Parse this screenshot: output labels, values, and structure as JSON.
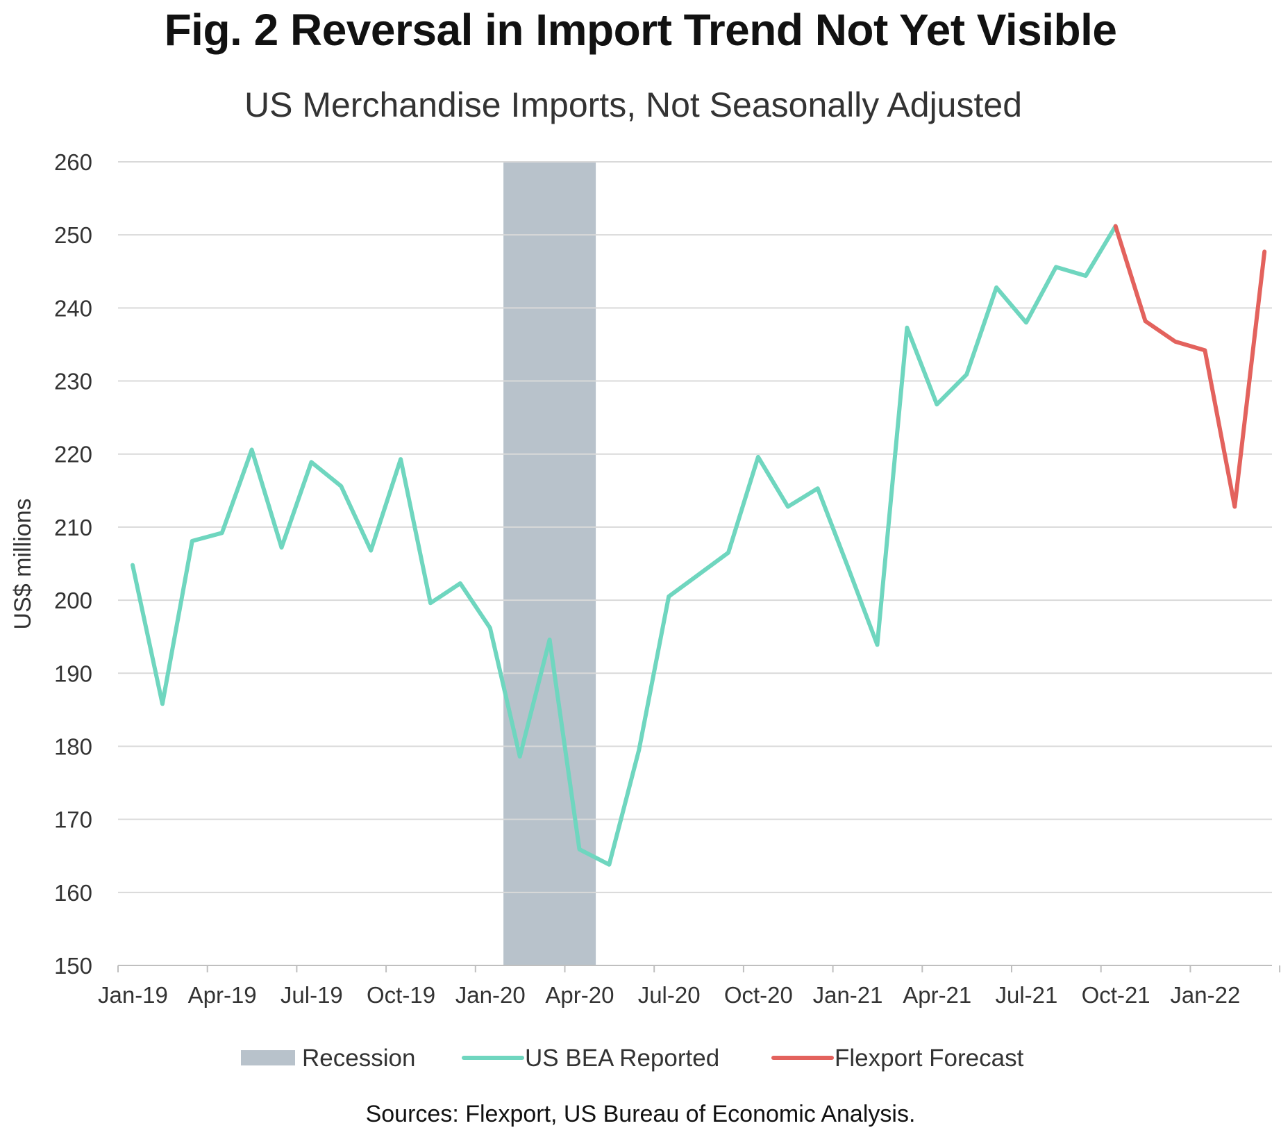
{
  "figure_title": "Fig. 2 Reversal in Import Trend Not Yet Visible",
  "source_note": "Sources: Flexport, US Bureau of Economic Analysis.",
  "chart_data": {
    "type": "line",
    "title": "US Merchandise Imports, Not Seasonally Adjusted",
    "xlabel": "",
    "ylabel": "US$ millions",
    "ylim": [
      150,
      260
    ],
    "yticks": [
      150,
      160,
      170,
      180,
      190,
      200,
      210,
      220,
      230,
      240,
      250,
      260
    ],
    "x_tick_labels": [
      "Jan-19",
      "Apr-19",
      "Jul-19",
      "Oct-19",
      "Jan-20",
      "Apr-20",
      "Jul-20",
      "Oct-20",
      "Jan-21",
      "Apr-21",
      "Jul-21",
      "Oct-21",
      "Jan-22"
    ],
    "months": [
      "Jan-19",
      "Feb-19",
      "Mar-19",
      "Apr-19",
      "May-19",
      "Jun-19",
      "Jul-19",
      "Aug-19",
      "Sep-19",
      "Oct-19",
      "Nov-19",
      "Dec-19",
      "Jan-20",
      "Feb-20",
      "Mar-20",
      "Apr-20",
      "May-20",
      "Jun-20",
      "Jul-20",
      "Aug-20",
      "Sep-20",
      "Oct-20",
      "Nov-20",
      "Dec-20",
      "Jan-21",
      "Feb-21",
      "Mar-21",
      "Apr-21",
      "May-21",
      "Jun-21",
      "Jul-21",
      "Aug-21",
      "Sep-21",
      "Oct-21",
      "Nov-21",
      "Dec-21",
      "Jan-22",
      "Feb-22",
      "Mar-22"
    ],
    "grid": true,
    "recession": {
      "name": "Recession",
      "start": "Feb-20",
      "end": "Apr-20",
      "color": "#b8c2cb"
    },
    "series": [
      {
        "name": "US BEA Reported",
        "color": "#6fd6bf",
        "start_index": 0,
        "values": [
          204.8,
          185.8,
          208.1,
          209.2,
          220.6,
          207.2,
          218.9,
          215.6,
          206.8,
          219.3,
          199.6,
          202.3,
          196.2,
          178.6,
          194.6,
          165.9,
          163.8,
          179.5,
          200.5,
          203.5,
          206.5,
          219.6,
          212.8,
          215.3,
          204.7,
          193.9,
          237.3,
          226.8,
          230.9,
          242.8,
          238.0,
          245.6,
          244.4,
          251.2
        ]
      },
      {
        "name": "Flexport Forecast",
        "color": "#e3625d",
        "start_index": 33,
        "values": [
          251.2,
          238.2,
          235.4,
          234.2,
          212.8,
          247.7
        ]
      }
    ],
    "legend_position": "bottom"
  }
}
